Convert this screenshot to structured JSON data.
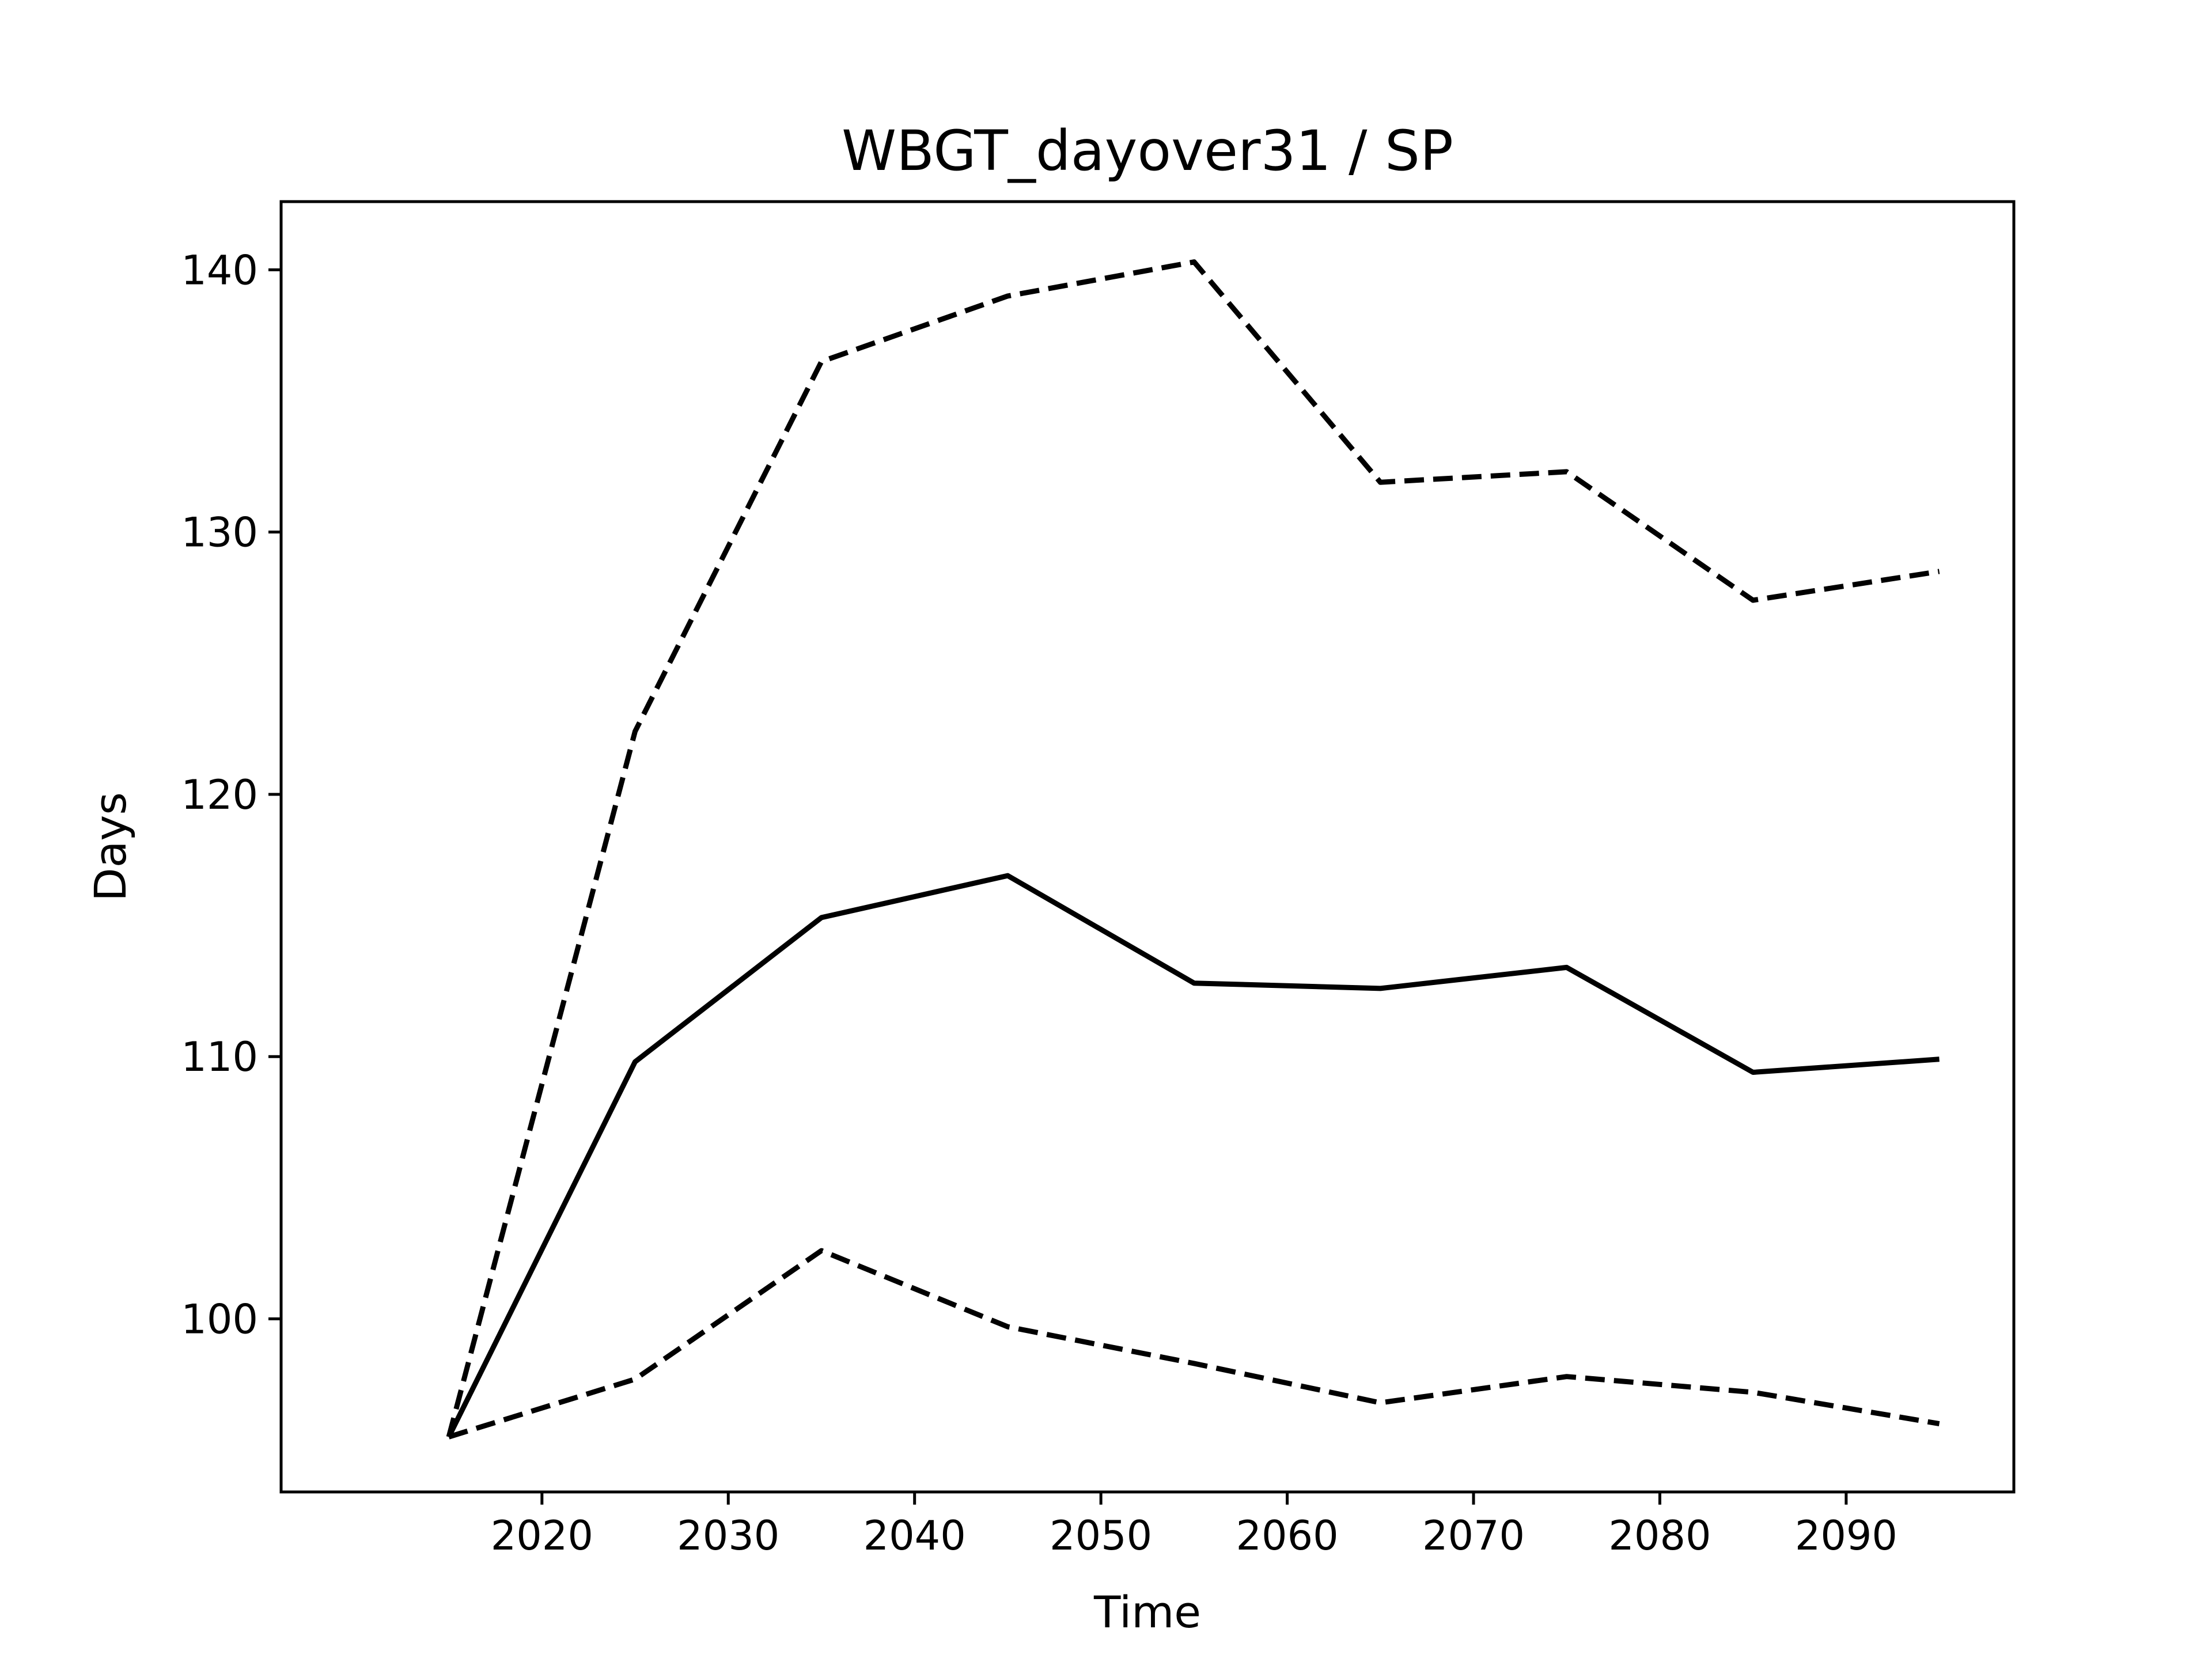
{
  "chart_data": {
    "type": "line",
    "title": "WBGT_dayover31 / SP",
    "xlabel": "Time",
    "ylabel": "Days",
    "x": [
      2015,
      2025,
      2035,
      2045,
      2055,
      2065,
      2075,
      2085,
      2095
    ],
    "xlim": [
      2006,
      2099
    ],
    "ylim": [
      93.4,
      142.6
    ],
    "xticks": [
      2020,
      2030,
      2040,
      2050,
      2060,
      2070,
      2080,
      2090
    ],
    "yticks": [
      100,
      110,
      120,
      130,
      140
    ],
    "grid": false,
    "series": [
      {
        "style": "solid",
        "color": "#000000",
        "values": [
          95.5,
          109.8,
          115.3,
          116.9,
          112.8,
          112.6,
          113.4,
          109.4,
          109.9
        ]
      },
      {
        "style": "dashed",
        "color": "#000000",
        "values": [
          95.5,
          122.4,
          136.5,
          139.0,
          140.3,
          131.9,
          132.3,
          127.4,
          128.5
        ]
      },
      {
        "style": "dashed",
        "color": "#000000",
        "values": [
          95.5,
          97.7,
          102.6,
          99.7,
          98.3,
          96.8,
          97.8,
          97.2,
          96.0
        ]
      }
    ]
  }
}
